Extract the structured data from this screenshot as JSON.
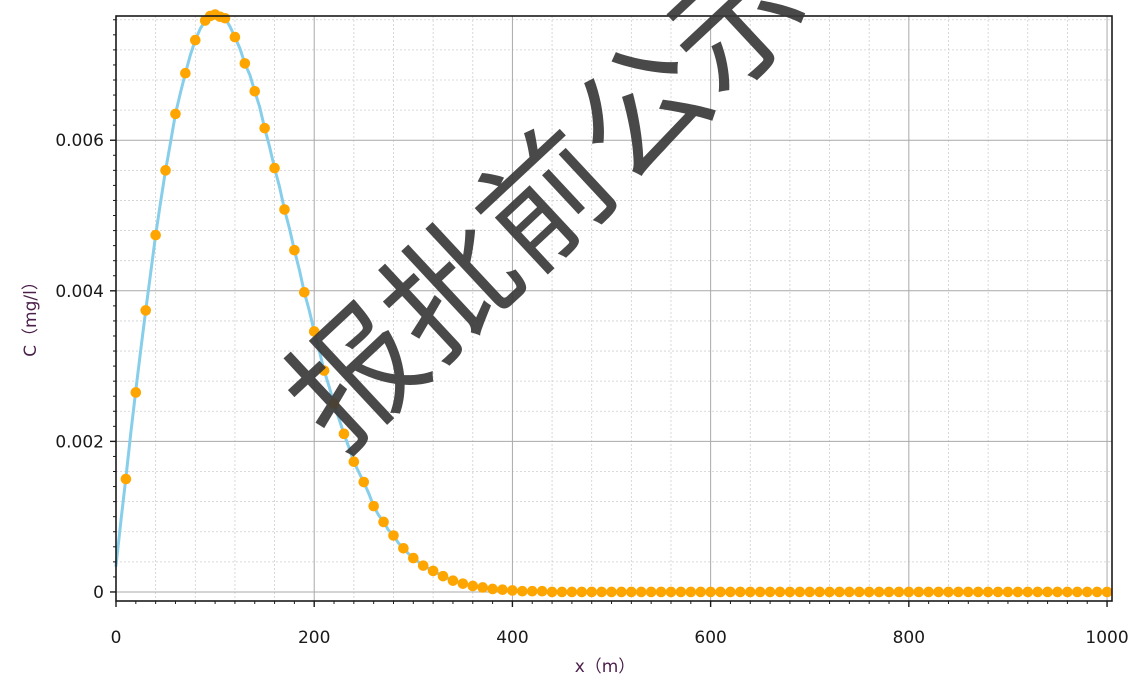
{
  "chart_data": {
    "type": "line",
    "xlabel": "x（m）",
    "ylabel": "C（mg/l）",
    "xlim": [
      0,
      1005
    ],
    "ylim": [
      -0.00012,
      0.00765
    ],
    "x_ticks": [
      0,
      200,
      400,
      600,
      800,
      1000
    ],
    "x_tick_labels": [
      "0",
      "200",
      "400",
      "600",
      "800",
      "1000"
    ],
    "y_ticks": [
      0,
      0.002,
      0.004,
      0.006
    ],
    "y_tick_labels": [
      "0",
      "0.002",
      "0.004",
      "0.006"
    ],
    "grid": true,
    "legend": "none",
    "series": [
      {
        "kind": "line",
        "color": "#87ceeb",
        "x": [
          0,
          5,
          10,
          15,
          20,
          25,
          30,
          35,
          40,
          45,
          50,
          55,
          60,
          65,
          70,
          75,
          80,
          85,
          90,
          95,
          100,
          105,
          110,
          115,
          120,
          125,
          130,
          135,
          140,
          145,
          150,
          155,
          160,
          165,
          170,
          175,
          180,
          185,
          190,
          195,
          200,
          205,
          210,
          215,
          220,
          225,
          230,
          235,
          240,
          245,
          250,
          255,
          260,
          265,
          270,
          275,
          280,
          285,
          290,
          295,
          300,
          310,
          320,
          330,
          340,
          350,
          360,
          370,
          380,
          390,
          400,
          420,
          440,
          460,
          500,
          600,
          700,
          800,
          900,
          1000
        ],
        "y": [
          0.00035,
          0.00095,
          0.00152,
          0.00212,
          0.00268,
          0.00322,
          0.00374,
          0.00424,
          0.00474,
          0.00518,
          0.0056,
          0.00597,
          0.00635,
          0.00663,
          0.00689,
          0.00713,
          0.00733,
          0.00748,
          0.00759,
          0.00765,
          0.00767,
          0.00764,
          0.00762,
          0.00751,
          0.00737,
          0.00722,
          0.00702,
          0.00687,
          0.00665,
          0.00644,
          0.00616,
          0.00591,
          0.00563,
          0.00538,
          0.00508,
          0.00483,
          0.00454,
          0.00428,
          0.00398,
          0.00374,
          0.00346,
          0.00321,
          0.00294,
          0.00273,
          0.0025,
          0.0023,
          0.0021,
          0.00192,
          0.00173,
          0.00159,
          0.00146,
          0.00131,
          0.00114,
          0.00102,
          0.00093,
          0.00082,
          0.00075,
          0.00065,
          0.00058,
          0.00051,
          0.00045,
          0.00035,
          0.00028,
          0.00021,
          0.00015,
          0.00011,
          8e-05,
          6e-05,
          4e-05,
          3e-05,
          2e-05,
          1e-05,
          4e-06,
          0.0,
          0.0,
          0.0,
          0.0,
          0.0,
          0.0,
          0.0
        ]
      },
      {
        "kind": "scatter",
        "color": "#ffa500",
        "x": [
          10,
          20,
          30,
          40,
          50,
          60,
          70,
          80,
          90,
          95,
          100,
          105,
          110,
          120,
          130,
          140,
          150,
          160,
          170,
          180,
          190,
          200,
          210,
          220,
          230,
          240,
          250,
          260,
          270,
          280,
          290,
          300,
          310,
          320,
          330,
          340,
          350,
          360,
          370,
          380,
          390,
          400,
          410,
          420,
          430,
          440,
          450,
          460,
          470,
          480,
          490,
          500,
          510,
          520,
          530,
          540,
          550,
          560,
          570,
          580,
          590,
          600,
          610,
          620,
          630,
          640,
          650,
          660,
          670,
          680,
          690,
          700,
          710,
          720,
          730,
          740,
          750,
          760,
          770,
          780,
          790,
          800,
          810,
          820,
          830,
          840,
          850,
          860,
          870,
          880,
          890,
          900,
          910,
          920,
          930,
          940,
          950,
          960,
          970,
          980,
          990,
          1000
        ],
        "y": [
          0.0015,
          0.00265,
          0.00374,
          0.00474,
          0.0056,
          0.00635,
          0.00689,
          0.00733,
          0.00759,
          0.00765,
          0.00767,
          0.00764,
          0.00762,
          0.00737,
          0.00702,
          0.00665,
          0.00616,
          0.00563,
          0.00508,
          0.00454,
          0.00398,
          0.00346,
          0.00294,
          0.0025,
          0.0021,
          0.00173,
          0.00146,
          0.00114,
          0.00093,
          0.00075,
          0.00058,
          0.00045,
          0.00035,
          0.00028,
          0.00021,
          0.00015,
          0.00011,
          8e-05,
          6e-05,
          4e-05,
          3e-05,
          2e-05,
          1e-05,
          1e-05,
          1e-05,
          0.0,
          0.0,
          0.0,
          0.0,
          0.0,
          0.0,
          0.0,
          0.0,
          0.0,
          0.0,
          0.0,
          0.0,
          0.0,
          0.0,
          0.0,
          0.0,
          0.0,
          0.0,
          0.0,
          0.0,
          0.0,
          0.0,
          0.0,
          0.0,
          0.0,
          0.0,
          0.0,
          0.0,
          0.0,
          0.0,
          0.0,
          0.0,
          0.0,
          0.0,
          0.0,
          0.0,
          0.0,
          0.0,
          0.0,
          0.0,
          0.0,
          0.0,
          0.0,
          0.0,
          0.0,
          0.0,
          0.0,
          0.0,
          0.0,
          0.0,
          0.0,
          0.0,
          0.0,
          0.0,
          0.0,
          0.0,
          0.0
        ]
      }
    ]
  },
  "watermark": {
    "text": "报批前公示",
    "color": "#3a3a3a"
  }
}
